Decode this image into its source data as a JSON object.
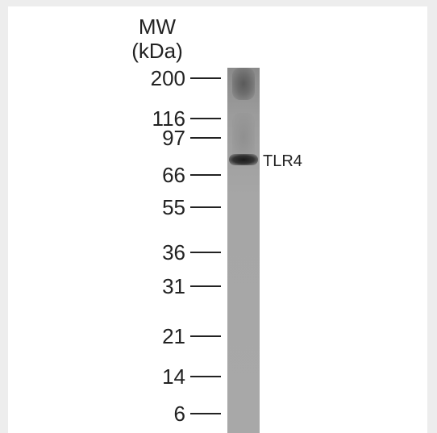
{
  "blot": {
    "mw_title": "MW",
    "mw_unit": "(kDa)",
    "markers": [
      "200",
      "116",
      "97",
      "66",
      "55",
      "36",
      "31",
      "21",
      "14",
      "6"
    ],
    "band_label": "TLR4"
  }
}
